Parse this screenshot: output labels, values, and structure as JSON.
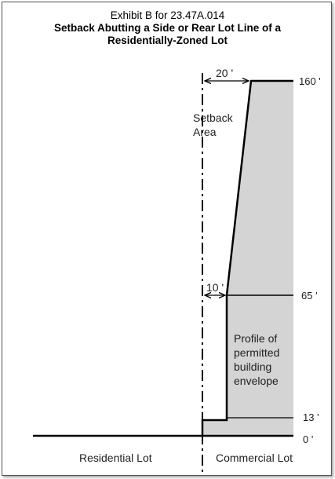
{
  "title": {
    "line1": "Exhibit B for 23.47A.014",
    "line2": "Setback Abutting a Side or Rear Lot Line of a",
    "line3": "Residentially-Zoned Lot"
  },
  "diagram": {
    "dim_top": "20 '",
    "dim_mid": "10 '",
    "setback_label_1": "Setback",
    "setback_label_2": "Area",
    "height_160": "160 '",
    "height_65": "65 '",
    "height_13": "13 '",
    "height_0": "0 '",
    "envelope_1": "Profile of",
    "envelope_2": "permitted",
    "envelope_3": "building",
    "envelope_4": "envelope",
    "residential_lot": "Residential Lot",
    "commercial_lot": "Commercial Lot",
    "colors": {
      "envelope_fill": "#d4d4d4",
      "line": "#000000"
    }
  }
}
